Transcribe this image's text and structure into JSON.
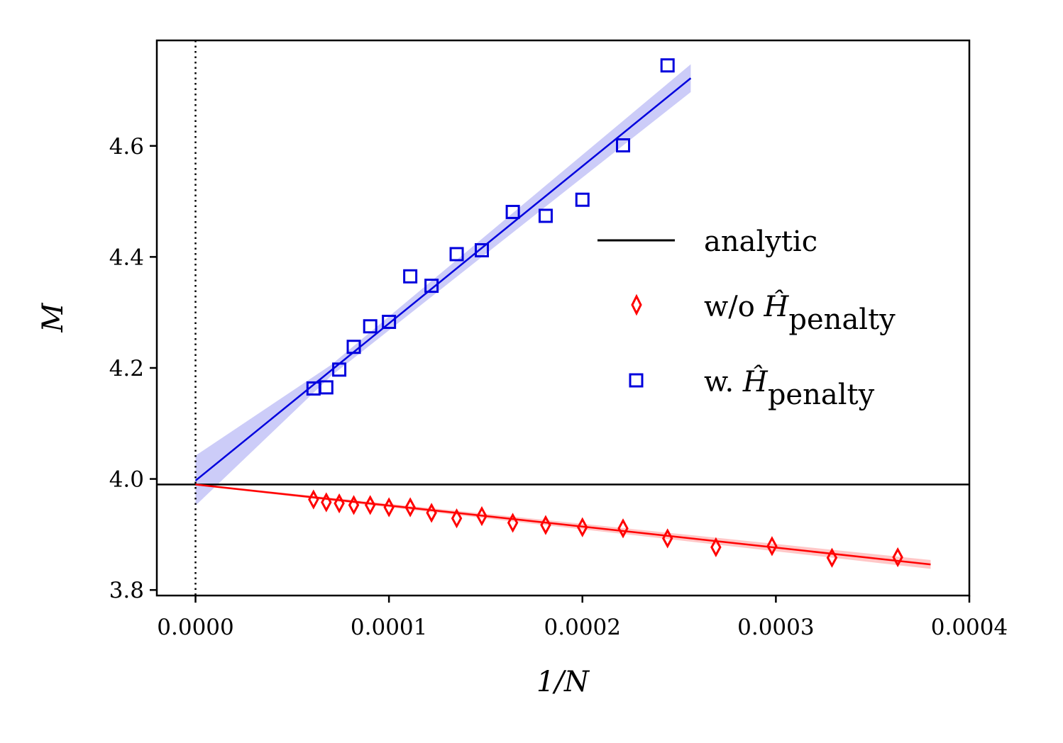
{
  "chart_data": {
    "type": "scatter",
    "title": "",
    "xlabel": "1/N",
    "ylabel": "M",
    "xlim": [
      -2e-05,
      0.0004
    ],
    "ylim": [
      3.79,
      4.79
    ],
    "x_ticks": [
      0.0,
      0.0001,
      0.0002,
      0.0003,
      0.0004
    ],
    "x_tick_labels": [
      "0.0000",
      "0.0001",
      "0.0002",
      "0.0003",
      "0.0004"
    ],
    "y_ticks": [
      3.8,
      4.0,
      4.2,
      4.4,
      4.6
    ],
    "y_tick_labels": [
      "3.8",
      "4.0",
      "4.2",
      "4.4",
      "4.6"
    ],
    "grid": false,
    "legend_position": "center-right",
    "reference_lines": {
      "analytic": {
        "y": 3.99,
        "color": "#000000",
        "label": "analytic"
      },
      "zero_x": {
        "x": 0.0,
        "style": "dotted",
        "color": "#000000"
      }
    },
    "series": [
      {
        "name": "w/o H_penalty",
        "label_main": "w/o ",
        "label_symbol": "Ĥ",
        "label_sub": "penalty",
        "marker": "diamond",
        "color": "#ff0000",
        "x": [
          6.1e-05,
          6.76e-05,
          7.43e-05,
          8.18e-05,
          9.03e-05,
          0.0001,
          0.000111,
          0.000122,
          0.000135,
          0.000148,
          0.000164,
          0.000181,
          0.0002,
          0.000221,
          0.000244,
          0.000269,
          0.000298,
          0.000329,
          0.000363
        ],
        "y": [
          3.963,
          3.958,
          3.956,
          3.953,
          3.953,
          3.949,
          3.949,
          3.939,
          3.929,
          3.933,
          3.921,
          3.917,
          3.913,
          3.911,
          3.893,
          3.877,
          3.879,
          3.858,
          3.859
        ],
        "fit": {
          "x": [
            0.0,
            0.00038
          ],
          "y": [
            3.99,
            3.846
          ],
          "band": 0.008
        }
      },
      {
        "name": "w. H_penalty",
        "label_main": "w. ",
        "label_symbol": "Ĥ",
        "label_sub": "penalty",
        "marker": "square",
        "color": "#0000dd",
        "x": [
          6.1e-05,
          6.76e-05,
          7.43e-05,
          8.18e-05,
          9.03e-05,
          0.0001,
          0.000111,
          0.000122,
          0.000135,
          0.000148,
          0.000164,
          0.000181,
          0.0002,
          0.000221,
          0.000244
        ],
        "y": [
          4.163,
          4.165,
          4.197,
          4.238,
          4.275,
          4.283,
          4.365,
          4.348,
          4.405,
          4.412,
          4.481,
          4.474,
          4.503,
          4.601,
          4.745
        ],
        "fit": {
          "x": [
            0.0,
            0.000256
          ],
          "y": [
            3.997,
            4.722
          ],
          "band_start": 0.045,
          "band_mid": 0.01,
          "band_end": 0.025
        }
      }
    ]
  }
}
